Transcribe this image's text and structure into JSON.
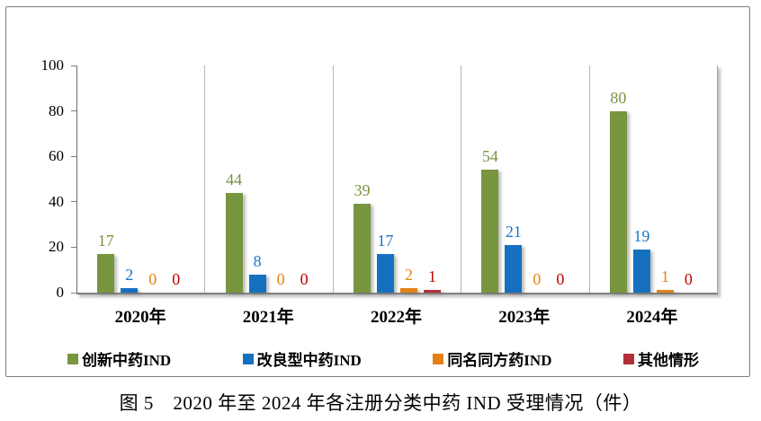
{
  "figure": {
    "caption": "图 5　2020 年至 2024 年各注册分类中药 IND 受理情况（件）"
  },
  "chart_data": {
    "type": "bar",
    "title": "",
    "xlabel": "",
    "ylabel": "",
    "categories": [
      "2020年",
      "2021年",
      "2022年",
      "2023年",
      "2024年"
    ],
    "series": [
      {
        "name": "创新中药IND",
        "color": "#78953F",
        "label_color": "#78953F",
        "values": [
          17,
          44,
          39,
          54,
          80
        ]
      },
      {
        "name": "改良型中药IND",
        "color": "#1571BF",
        "label_color": "#1B74C8",
        "values": [
          2,
          8,
          17,
          21,
          19
        ]
      },
      {
        "name": "同名同方药IND",
        "color": "#E38117",
        "label_color": "#E8820E",
        "values": [
          0,
          0,
          2,
          0,
          1
        ]
      },
      {
        "name": "其他情形",
        "color": "#B02F38",
        "label_color": "#C00000",
        "values": [
          0,
          0,
          1,
          0,
          0
        ]
      }
    ],
    "ylim": [
      0,
      100
    ],
    "yticks": [
      0,
      20,
      40,
      60,
      80,
      100
    ],
    "grid": "vertical-category-separators-only",
    "legend_position": "bottom",
    "value_labels": true
  }
}
